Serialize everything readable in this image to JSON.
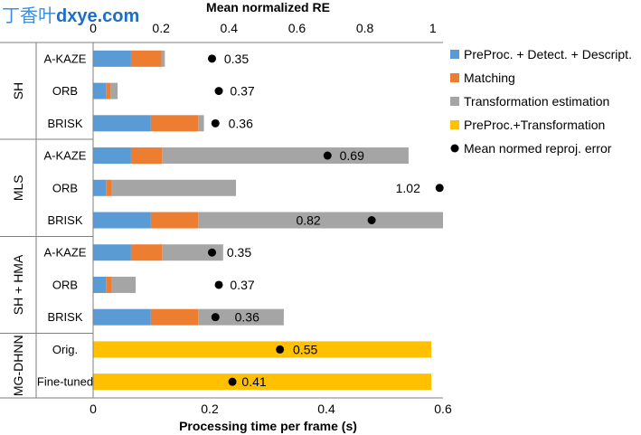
{
  "watermark": {
    "cjk": "丁香叶",
    "latin": "dxye.com"
  },
  "chart_data": {
    "type": "bar",
    "orientation": "horizontal",
    "stacked": true,
    "grid": false,
    "legend_position": "right",
    "x_bottom": {
      "label": "Processing time per frame (s)",
      "range": [
        0,
        0.6
      ],
      "ticks": [
        0,
        0.2,
        0.4,
        0.6
      ]
    },
    "x_top": {
      "label": "Mean normalized RE",
      "range": [
        0,
        1.03
      ],
      "ticks": [
        0,
        0.2,
        0.4,
        0.6,
        0.8,
        1
      ]
    },
    "groups": [
      {
        "name": "SH",
        "categories": [
          "A-KAZE",
          "ORB",
          "BRISK"
        ]
      },
      {
        "name": "MLS",
        "categories": [
          "A-KAZE",
          "ORB",
          "BRISK"
        ]
      },
      {
        "name": "SH + HMA",
        "categories": [
          "A-KAZE",
          "ORB",
          "BRISK"
        ]
      },
      {
        "name": "MG-DHNN",
        "categories": [
          "Orig.",
          "Fine-tuned"
        ]
      }
    ],
    "series": [
      {
        "name": "PreProc. + Detect. + Descript.",
        "color": "#5B9BD5",
        "axis": "bottom",
        "values": [
          0.065,
          0.022,
          0.099,
          0.065,
          0.022,
          0.099,
          0.065,
          0.022,
          0.099,
          null,
          null
        ]
      },
      {
        "name": "Matching",
        "color": "#ED7D31",
        "axis": "bottom",
        "values": [
          0.052,
          0.008,
          0.081,
          0.053,
          0.009,
          0.081,
          0.053,
          0.009,
          0.081,
          null,
          null
        ]
      },
      {
        "name": "Transformation estimation",
        "color": "#A5A5A5",
        "axis": "bottom",
        "values": [
          0.006,
          0.012,
          0.01,
          0.423,
          0.214,
          0.42,
          0.105,
          0.042,
          0.147,
          null,
          null
        ]
      },
      {
        "name": "PreProc.+Transformation",
        "color": "#FFC000",
        "axis": "bottom",
        "values": [
          null,
          null,
          null,
          null,
          null,
          null,
          null,
          null,
          null,
          0.58,
          0.58
        ]
      }
    ],
    "markers": {
      "name": "Mean normed reproj. error",
      "type": "scatter",
      "color": "#000000",
      "axis": "top",
      "values": [
        0.35,
        0.37,
        0.36,
        0.69,
        1.02,
        0.82,
        0.35,
        0.37,
        0.36,
        0.55,
        0.41
      ]
    }
  }
}
